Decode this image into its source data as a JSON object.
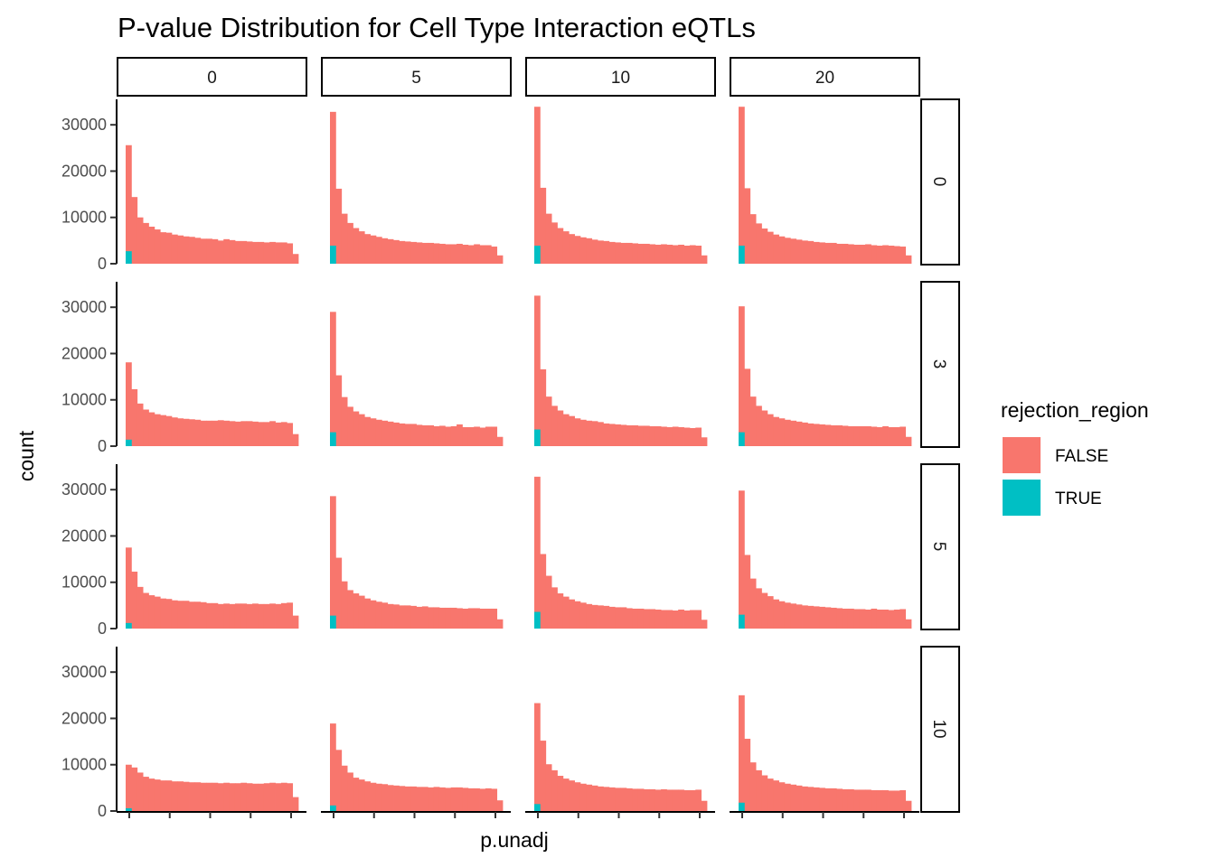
{
  "chart_data": {
    "type": "bar",
    "title": "P-value Distribution for Cell Type Interaction eQTLs",
    "xlabel": "p.unadj",
    "ylabel": "count",
    "ylim": [
      0,
      35500
    ],
    "yticks": [
      0,
      10000,
      20000,
      30000
    ],
    "ytick_labels": [
      "0",
      "10000",
      "20000",
      "30000"
    ],
    "col_facets": [
      "0",
      "5",
      "10",
      "20"
    ],
    "row_facets": [
      "0",
      "3",
      "5",
      "10"
    ],
    "bins": 30,
    "grid": false,
    "legend": {
      "title": "rejection_region",
      "position": "right",
      "entries": [
        {
          "label": "FALSE",
          "color": "#F8766D"
        },
        {
          "label": "TRUE",
          "color": "#00BFC4"
        }
      ]
    },
    "colors": {
      "FALSE": "#F8766D",
      "TRUE": "#00BFC4"
    },
    "panels": [
      {
        "row": "0",
        "col": "0",
        "true_first_bin": 2700,
        "values": [
          25600,
          14400,
          10000,
          8800,
          8000,
          7400,
          6800,
          6700,
          6300,
          6100,
          5900,
          5800,
          5600,
          5400,
          5400,
          5300,
          5000,
          5300,
          5100,
          4900,
          4900,
          4800,
          4700,
          4700,
          4600,
          4700,
          4600,
          4600,
          4400,
          2100
        ]
      },
      {
        "row": "0",
        "col": "5",
        "true_first_bin": 3900,
        "values": [
          32800,
          16200,
          10800,
          8800,
          7700,
          7000,
          6400,
          6100,
          5800,
          5500,
          5300,
          5100,
          4900,
          4800,
          4700,
          4600,
          4500,
          4500,
          4400,
          4300,
          4200,
          4200,
          4300,
          4100,
          4000,
          4200,
          4000,
          4000,
          3700,
          1800
        ]
      },
      {
        "row": "0",
        "col": "10",
        "true_first_bin": 3900,
        "values": [
          33900,
          16400,
          10800,
          8900,
          7700,
          7000,
          6400,
          6000,
          5700,
          5500,
          5200,
          5000,
          4900,
          4700,
          4600,
          4500,
          4500,
          4400,
          4300,
          4300,
          4200,
          4100,
          4200,
          4100,
          4000,
          4100,
          3900,
          4000,
          3900,
          1800
        ]
      },
      {
        "row": "0",
        "col": "20",
        "true_first_bin": 3900,
        "values": [
          33900,
          16300,
          10700,
          8700,
          7600,
          6900,
          6300,
          5900,
          5600,
          5400,
          5200,
          5000,
          4900,
          4700,
          4600,
          4500,
          4500,
          4300,
          4300,
          4200,
          4100,
          4100,
          4200,
          4000,
          3900,
          4000,
          3900,
          3800,
          3700,
          1800
        ]
      },
      {
        "row": "3",
        "col": "0",
        "true_first_bin": 1400,
        "values": [
          18100,
          12300,
          9200,
          7900,
          7300,
          6900,
          6700,
          6500,
          6200,
          6000,
          5900,
          5800,
          5700,
          5500,
          5500,
          5500,
          5600,
          5500,
          5400,
          5300,
          5400,
          5400,
          5300,
          5200,
          5200,
          5400,
          5100,
          5200,
          5000,
          2600
        ]
      },
      {
        "row": "3",
        "col": "5",
        "true_first_bin": 3000,
        "values": [
          29000,
          15300,
          10600,
          8500,
          7500,
          6900,
          6300,
          6000,
          5700,
          5500,
          5300,
          5100,
          4900,
          4800,
          4800,
          4600,
          4500,
          4500,
          4300,
          4400,
          4200,
          4300,
          4700,
          4100,
          4100,
          4200,
          4000,
          4200,
          4200,
          2000
        ]
      },
      {
        "row": "3",
        "col": "10",
        "true_first_bin": 3600,
        "values": [
          32500,
          16600,
          10700,
          8700,
          7700,
          6900,
          6500,
          6000,
          5700,
          5500,
          5400,
          5200,
          4900,
          4800,
          4700,
          4600,
          4500,
          4500,
          4400,
          4400,
          4300,
          4300,
          4200,
          4100,
          4200,
          4100,
          4000,
          3900,
          4000,
          1900
        ]
      },
      {
        "row": "3",
        "col": "20",
        "true_first_bin": 3000,
        "values": [
          30200,
          16700,
          10700,
          8700,
          7700,
          6900,
          6300,
          6000,
          5700,
          5500,
          5300,
          5100,
          4900,
          4800,
          4700,
          4600,
          4500,
          4500,
          4400,
          4300,
          4300,
          4300,
          4300,
          4200,
          4100,
          4300,
          4100,
          4100,
          4200,
          2000
        ]
      },
      {
        "row": "5",
        "col": "0",
        "true_first_bin": 1200,
        "values": [
          17500,
          12300,
          9000,
          7700,
          7200,
          6900,
          6500,
          6400,
          6100,
          6000,
          6000,
          5800,
          5800,
          5700,
          5500,
          5500,
          5300,
          5400,
          5300,
          5400,
          5400,
          5300,
          5400,
          5300,
          5300,
          5400,
          5300,
          5500,
          5600,
          2800
        ]
      },
      {
        "row": "5",
        "col": "5",
        "true_first_bin": 2800,
        "values": [
          28600,
          15300,
          10200,
          8300,
          7600,
          7100,
          6500,
          6100,
          5800,
          5600,
          5300,
          5200,
          5000,
          5000,
          4900,
          4700,
          4800,
          4600,
          4600,
          4500,
          4500,
          4500,
          4400,
          4300,
          4400,
          4400,
          4300,
          4300,
          4300,
          2000
        ]
      },
      {
        "row": "5",
        "col": "10",
        "true_first_bin": 3600,
        "values": [
          32800,
          16100,
          11400,
          8900,
          7600,
          6900,
          6300,
          5900,
          5600,
          5300,
          5100,
          5000,
          4900,
          4700,
          4600,
          4600,
          4400,
          4300,
          4300,
          4200,
          4200,
          4100,
          4000,
          4000,
          3900,
          4100,
          3900,
          4000,
          4000,
          1900
        ]
      },
      {
        "row": "5",
        "col": "20",
        "true_first_bin": 3000,
        "values": [
          29800,
          15900,
          10800,
          8700,
          7700,
          7000,
          6300,
          5900,
          5600,
          5400,
          5200,
          5000,
          4900,
          4800,
          4700,
          4600,
          4500,
          4400,
          4300,
          4300,
          4200,
          4200,
          4100,
          4300,
          4100,
          4100,
          4000,
          4100,
          4200,
          2000
        ]
      },
      {
        "row": "10",
        "col": "0",
        "true_first_bin": 600,
        "values": [
          10000,
          9400,
          8300,
          7400,
          7000,
          6800,
          6600,
          6600,
          6400,
          6400,
          6300,
          6200,
          6200,
          6100,
          6100,
          6100,
          6000,
          6100,
          6000,
          6000,
          6100,
          6000,
          5900,
          5900,
          6000,
          6100,
          6000,
          6100,
          6000,
          3000
        ]
      },
      {
        "row": "10",
        "col": "5",
        "true_first_bin": 1200,
        "values": [
          18900,
          13200,
          9800,
          8300,
          7200,
          6800,
          6400,
          6100,
          5900,
          5800,
          5600,
          5500,
          5400,
          5300,
          5300,
          5200,
          5200,
          5100,
          5200,
          5100,
          5000,
          5100,
          5100,
          5000,
          4900,
          4900,
          4800,
          4900,
          4800,
          2300
        ]
      },
      {
        "row": "10",
        "col": "10",
        "true_first_bin": 1500,
        "values": [
          23300,
          15200,
          10100,
          8800,
          7600,
          7000,
          6600,
          6200,
          5900,
          5700,
          5500,
          5300,
          5200,
          5100,
          5000,
          5000,
          4900,
          4800,
          4800,
          4700,
          4700,
          4600,
          4700,
          4600,
          4600,
          4600,
          4500,
          4500,
          4600,
          2200
        ]
      },
      {
        "row": "10",
        "col": "20",
        "true_first_bin": 1800,
        "values": [
          25000,
          15600,
          10500,
          8800,
          7700,
          7000,
          6600,
          6200,
          5900,
          5700,
          5500,
          5300,
          5200,
          5100,
          5000,
          4900,
          4900,
          4800,
          4700,
          4700,
          4600,
          4600,
          4600,
          4500,
          4500,
          4500,
          4400,
          4400,
          4500,
          2200
        ]
      }
    ]
  }
}
